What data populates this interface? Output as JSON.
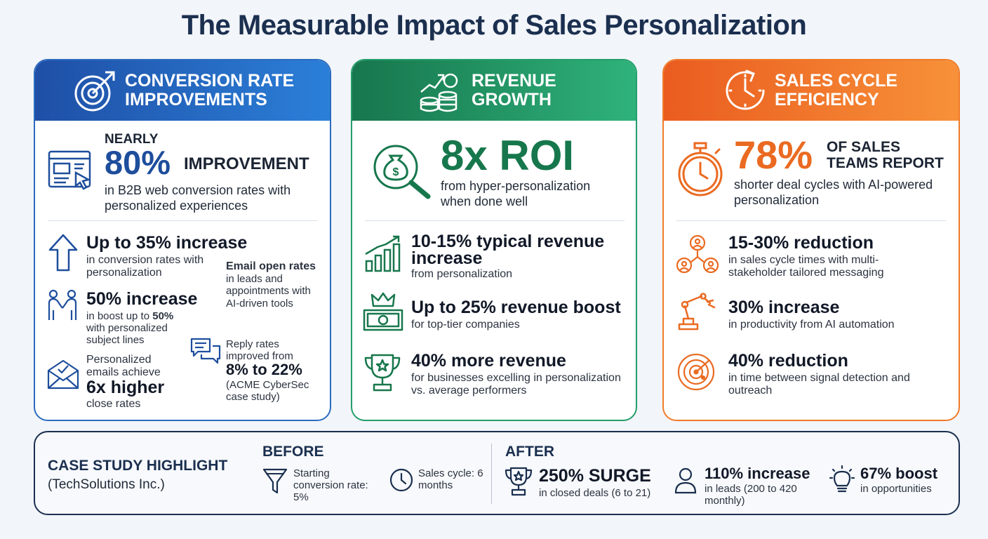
{
  "title": "The Measurable Impact of Sales Personalization",
  "colors": {
    "blue": "#2b6bc0",
    "green": "#239e6a",
    "orange": "#f07a28",
    "navy": "#1b2f4f"
  },
  "conversion": {
    "header": "CONVERSION RATE\nIMPROVEMENTS",
    "header_icon": "target-arrow-icon",
    "hero": {
      "icon": "web-browser-cursor-icon",
      "prefix": "NEARLY",
      "value": "80%",
      "label": "IMPROVEMENT",
      "desc": "in B2B web conversion rates with personalized experiences"
    },
    "stat1": {
      "icon": "arrow-up-icon",
      "title": "Up to 35% increase",
      "desc": "in conversion rates with personalization"
    },
    "stat2": {
      "icon": "handshake-icon",
      "title": "50% increase",
      "desc_prefix": "in boost up to ",
      "desc_bold": "50%",
      "desc_suffix": " with personalized subject lines"
    },
    "stat3": {
      "title": "Email open rates",
      "desc": " in leads and appointments with AI-driven tools"
    },
    "stat4": {
      "icon": "envelope-check-icon",
      "line1": "Personalized emails achieve",
      "big": "6x higher",
      "line2": "close rates"
    },
    "stat5": {
      "icon": "chat-bubbles-icon",
      "line1": "Reply rates improved from",
      "big": "8% to 22%",
      "line2": "(ACME CyberSec case study)"
    }
  },
  "revenue": {
    "header": "REVENUE\nGROWTH",
    "header_icon": "coins-growth-icon",
    "hero": {
      "icon": "money-bag-search-icon",
      "value": "8x ROI",
      "desc": "from hyper-personalization when done well"
    },
    "stat1": {
      "icon": "bar-chart-growth-icon",
      "title": "10-15% typical revenue increase",
      "desc": "from personalization"
    },
    "stat2": {
      "icon": "crown-banknote-icon",
      "title": "Up to 25% revenue boost",
      "desc": "for top-tier companies"
    },
    "stat3": {
      "icon": "trophy-star-icon",
      "title": "40% more revenue",
      "desc": "for businesses excelling in personalization vs. average performers"
    }
  },
  "cycle": {
    "header": "SALES CYCLE\nEFFICIENCY",
    "header_icon": "clock-arrow-icon",
    "hero": {
      "icon": "stopwatch-icon",
      "value": "78%",
      "label": "OF SALES TEAMS REPORT",
      "desc": "shorter deal cycles with AI-powered personalization"
    },
    "stat1": {
      "icon": "stakeholders-network-icon",
      "title": "15-30% reduction",
      "desc": "in sales cycle times with multi-stakeholder tailored messaging"
    },
    "stat2": {
      "icon": "robot-arm-icon",
      "title": "30% increase",
      "desc": "in productivity from AI automation"
    },
    "stat3": {
      "icon": "radar-icon",
      "title": "40% reduction",
      "desc": "in time between signal detection and outreach"
    }
  },
  "case_study": {
    "label": "CASE STUDY HIGHLIGHT",
    "company": "(TechSolutions Inc.)",
    "before_label": "BEFORE",
    "before1": {
      "icon": "funnel-icon",
      "text": "Starting conversion rate: 5%"
    },
    "before2": {
      "icon": "clock-icon",
      "text": "Sales cycle: 6 months"
    },
    "after_label": "AFTER",
    "after1": {
      "icon": "trophy-icon",
      "title": "250% SURGE",
      "desc": "in closed deals (6 to 21)"
    },
    "after2": {
      "icon": "person-icon",
      "title": "110% increase",
      "desc": "in leads (200 to 420 monthly)"
    },
    "after3": {
      "icon": "lightbulb-icon",
      "title": "67% boost",
      "desc": "in opportunities"
    }
  }
}
